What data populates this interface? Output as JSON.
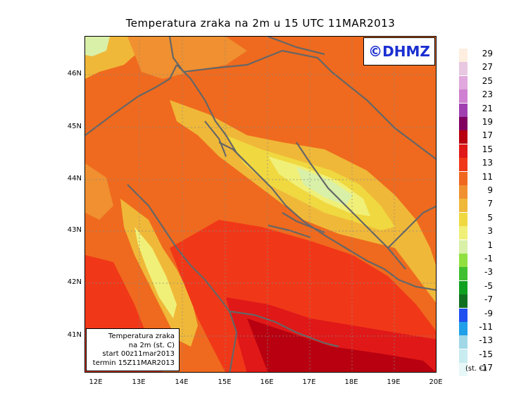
{
  "title": "Temperatura zraka na 2m u 15 UTC 11MAR2013",
  "logo": "©DHMZ",
  "infobox": {
    "line1": "Temperatura zraka",
    "line2": "na 2m (st. C)",
    "line3": "start 00z11mar2013",
    "line4": "termin 15Z11MAR2013"
  },
  "y_axis_labels": [
    "46N",
    "45N",
    "44N",
    "43N",
    "42N",
    "41N"
  ],
  "x_axis_labels": [
    "12E",
    "13E",
    "14E",
    "15E",
    "16E",
    "17E",
    "18E",
    "19E",
    "20E"
  ],
  "legend": {
    "unit": "(st. C)",
    "labels": [
      "29",
      "27",
      "25",
      "23",
      "21",
      "19",
      "17",
      "15",
      "13",
      "11",
      "9",
      "7",
      "5",
      "3",
      "1",
      "-1",
      "-3",
      "-5",
      "-7",
      "-9",
      "-11",
      "-13",
      "-15",
      "-17"
    ],
    "colors": [
      "#fdeee0",
      "#e8c8e0",
      "#e0a8dc",
      "#d080d0",
      "#a040b0",
      "#800060",
      "#b80010",
      "#e01818",
      "#f03818",
      "#f06820",
      "#f09030",
      "#f0b838",
      "#f0d840",
      "#f0f078",
      "#d8f0a8",
      "#90e040",
      "#40c030",
      "#10a020",
      "#107020",
      "#2050f0",
      "#20a0e8",
      "#a0d8e8",
      "#c8ecf0",
      "#e8f8f8"
    ]
  }
}
